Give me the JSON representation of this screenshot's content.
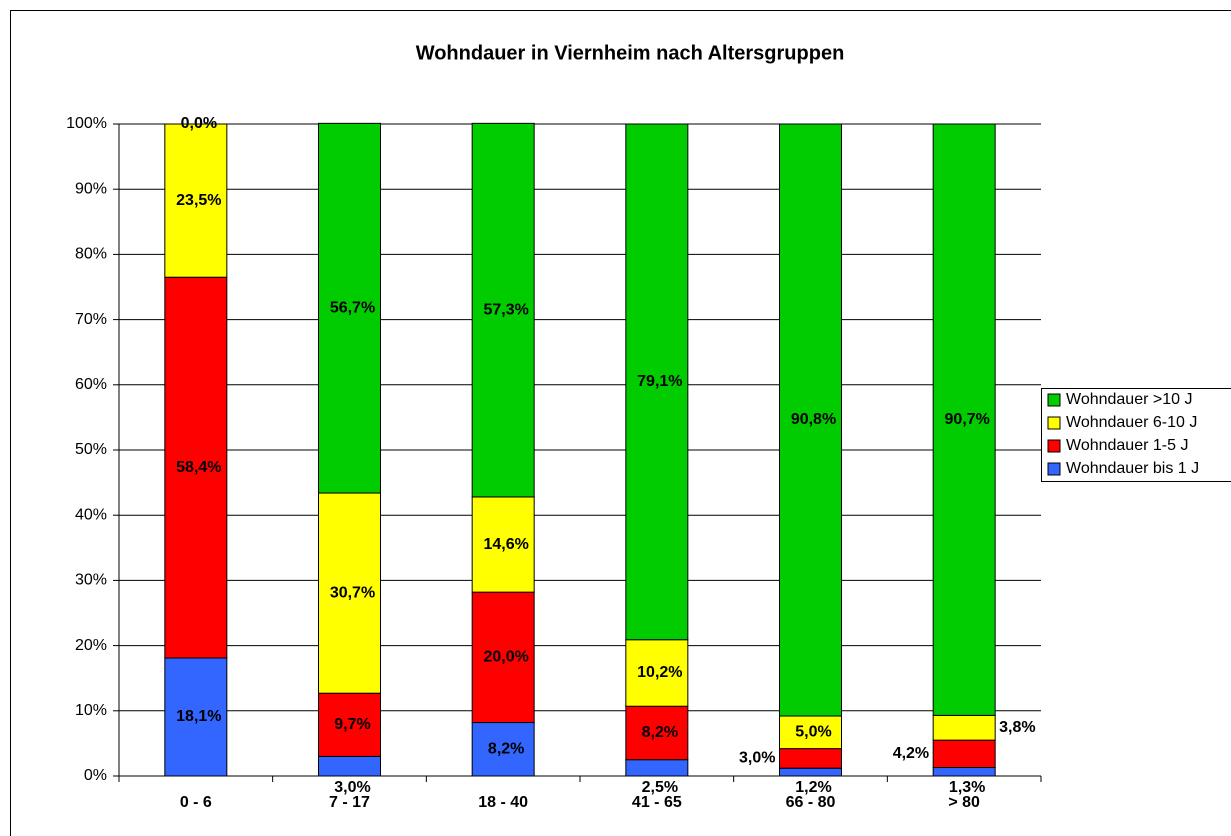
{
  "chart_data": {
    "type": "stacked_bar",
    "title": "Wohndauer in Viernheim nach Altersgruppen",
    "categories": [
      "0 - 6",
      "7 - 17",
      "18 - 40",
      "41 - 65",
      "66 - 80",
      "> 80"
    ],
    "series": [
      {
        "name": "Wohndauer bis 1 J",
        "color": "#3366ff",
        "values": [
          18.1,
          3.0,
          8.2,
          2.5,
          1.2,
          1.3
        ],
        "value_labels": [
          "18,1%",
          "3,0%",
          "8,2%",
          "2,5%",
          "1,2%",
          "1,3%"
        ]
      },
      {
        "name": "Wohndauer 1-5 J",
        "color": "#ff0000",
        "values": [
          58.4,
          9.7,
          20.0,
          8.2,
          3.0,
          4.2
        ],
        "value_labels": [
          "58,4%",
          "9,7%",
          "20,0%",
          "8,2%",
          "3,0%",
          "4,2%"
        ]
      },
      {
        "name": "Wohndauer 6-10 J",
        "color": "#ffff00",
        "values": [
          23.5,
          30.7,
          14.6,
          10.2,
          5.0,
          3.8
        ],
        "value_labels": [
          "23,5%",
          "30,7%",
          "14,6%",
          "10,2%",
          "5,0%",
          "3,8%"
        ]
      },
      {
        "name": "Wohndauer >10 J",
        "color": "#00cc00",
        "values": [
          0.0,
          56.7,
          57.3,
          79.1,
          90.8,
          90.7
        ],
        "value_labels": [
          "0,0%",
          "56,7%",
          "57,3%",
          "79,1%",
          "90,8%",
          "90,7%"
        ]
      }
    ],
    "ylim": [
      0,
      100
    ],
    "yticks": [
      {
        "value": 0,
        "label": "0%"
      },
      {
        "value": 10,
        "label": "10%"
      },
      {
        "value": 20,
        "label": "20%"
      },
      {
        "value": 30,
        "label": "30%"
      },
      {
        "value": 40,
        "label": "40%"
      },
      {
        "value": 50,
        "label": "50%"
      },
      {
        "value": 60,
        "label": "60%"
      },
      {
        "value": 70,
        "label": "70%"
      },
      {
        "value": 80,
        "label": "80%"
      },
      {
        "value": 90,
        "label": "90%"
      },
      {
        "value": 100,
        "label": "100%"
      }
    ],
    "grid": true,
    "legend": "right"
  }
}
